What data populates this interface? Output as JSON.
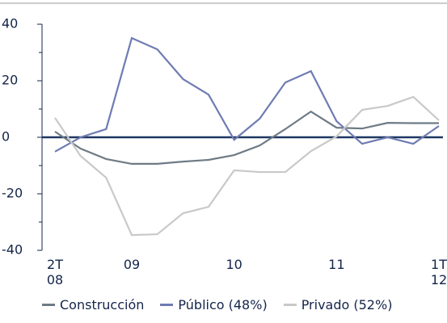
{
  "chart_data": {
    "type": "line",
    "categories": [
      "2T\n08",
      null,
      null,
      "09",
      null,
      null,
      null,
      "10",
      null,
      null,
      null,
      "11",
      null,
      null,
      null,
      "1T\n12"
    ],
    "series": [
      {
        "name": "Construcción",
        "color": "#6e7b86",
        "values": [
          2,
          -4,
          -7.7,
          -9.4,
          -9.4,
          -8.6,
          -8,
          -6.3,
          -2.9,
          2.9,
          9.1,
          3.4,
          3.1,
          5.1,
          5,
          5
        ]
      },
      {
        "name": "Público (48%)",
        "color": "#6f7cb2",
        "values": [
          -5.1,
          0,
          2.9,
          35.1,
          31.1,
          20.6,
          15.1,
          -0.9,
          6.6,
          19.4,
          23.4,
          5.7,
          -2.3,
          0,
          -2.3,
          4
        ]
      },
      {
        "name": "Privado (52%)",
        "color": "#c9c9c9",
        "values": [
          6.9,
          -6.6,
          -14.3,
          -34.6,
          -34.3,
          -26.9,
          -24.6,
          -11.7,
          -12.3,
          -12.3,
          -4.9,
          0.3,
          9.7,
          11.1,
          14.3,
          6
        ]
      }
    ],
    "ylim": [
      -40,
      40
    ],
    "yticks": [
      -40,
      -20,
      0,
      20,
      40
    ],
    "legend": "bottom"
  }
}
